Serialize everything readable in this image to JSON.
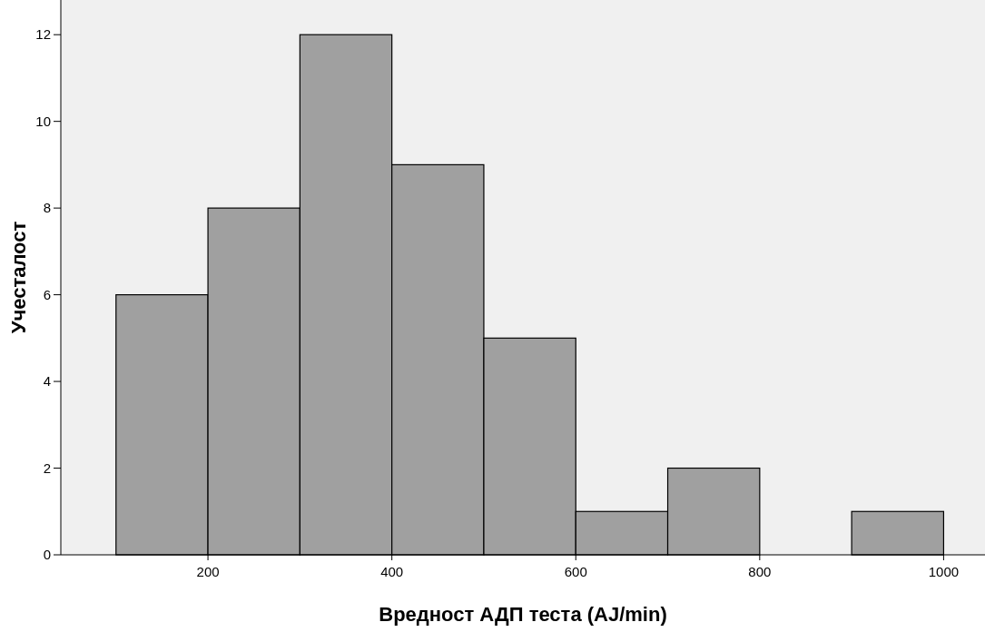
{
  "chart_data": {
    "type": "histogram",
    "xlabel": "Вредност АДП теста (AJ/min)",
    "ylabel": "Учесталост",
    "bins": [
      100,
      200,
      300,
      400,
      500,
      600,
      700,
      800,
      900,
      1000
    ],
    "values": [
      6,
      8,
      12,
      9,
      5,
      1,
      2,
      0,
      1
    ],
    "color": "#a0a0a0",
    "xlim": [
      40,
      1045
    ],
    "xticks": [
      200,
      400,
      600,
      800,
      1000
    ],
    "ylim": [
      0,
      12.8
    ],
    "yticks": [
      0,
      2,
      4,
      6,
      8,
      10,
      12
    ],
    "grid": false
  }
}
